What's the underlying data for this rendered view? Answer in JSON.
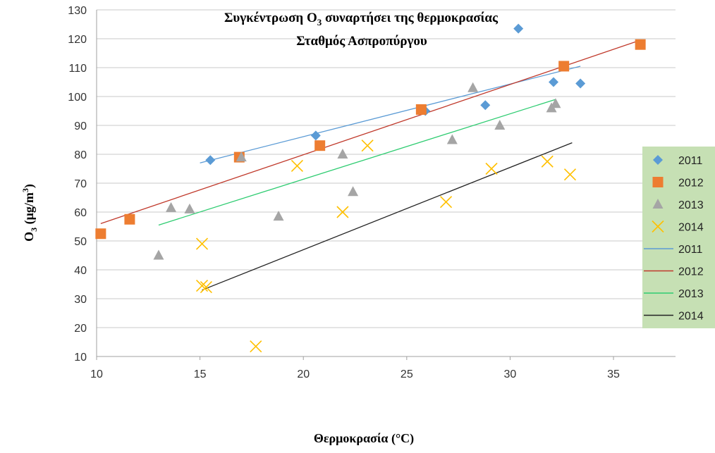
{
  "chart_data": {
    "type": "scatter",
    "title_line1": "Συγκέντρωση O",
    "title_sub": "3",
    "title_line1_rest": " συναρτήσει της θερμοκρασίας",
    "title_line2": "Σταθμός Ασπροπύργου",
    "ylabel_main": "O",
    "ylabel_sub": "3",
    "ylabel_rest": " (μg/m",
    "ylabel_sup": "3",
    "ylabel_end": ")",
    "xlabel": "Θερμοκρασία (°C)",
    "xlim": [
      10,
      38
    ],
    "ylim": [
      10,
      130
    ],
    "xticks": [
      10,
      15,
      20,
      25,
      30,
      35
    ],
    "yticks": [
      10,
      20,
      30,
      40,
      50,
      60,
      70,
      80,
      90,
      100,
      110,
      120,
      130
    ],
    "grid": "horizontal",
    "legend_position": "right",
    "series": [
      {
        "name": "2011",
        "marker": "diamond",
        "color": "#5b9bd5",
        "points": [
          [
            15.5,
            78
          ],
          [
            20.6,
            86.5
          ],
          [
            25.9,
            95
          ],
          [
            28.8,
            97
          ],
          [
            30.4,
            123.5
          ],
          [
            32.1,
            105
          ],
          [
            33.4,
            104.5
          ]
        ]
      },
      {
        "name": "2012",
        "marker": "square",
        "color": "#ed7d31",
        "points": [
          [
            10.2,
            52.5
          ],
          [
            11.6,
            57.5
          ],
          [
            16.9,
            79
          ],
          [
            20.8,
            83
          ],
          [
            25.7,
            95.5
          ],
          [
            32.6,
            110.5
          ],
          [
            36.3,
            118
          ]
        ]
      },
      {
        "name": "2013",
        "marker": "triangle",
        "color": "#a5a5a5",
        "points": [
          [
            13.0,
            45
          ],
          [
            13.6,
            61.5
          ],
          [
            14.5,
            61
          ],
          [
            17.0,
            79
          ],
          [
            18.8,
            58.5
          ],
          [
            21.9,
            80
          ],
          [
            22.4,
            67
          ],
          [
            27.2,
            85
          ],
          [
            28.2,
            103
          ],
          [
            29.5,
            90
          ],
          [
            32.0,
            96
          ],
          [
            32.2,
            97.5
          ]
        ]
      },
      {
        "name": "2014",
        "marker": "x",
        "color": "#ffc000",
        "points": [
          [
            15.1,
            49
          ],
          [
            15.1,
            34.5
          ],
          [
            15.3,
            34
          ],
          [
            17.7,
            13.5
          ],
          [
            19.7,
            76
          ],
          [
            21.9,
            60
          ],
          [
            23.1,
            83
          ],
          [
            26.9,
            63.5
          ],
          [
            29.1,
            75
          ],
          [
            31.8,
            77.5
          ],
          [
            32.9,
            73
          ]
        ]
      }
    ],
    "trendlines": [
      {
        "name": "2011",
        "color": "#5b9bd5",
        "from": [
          15.0,
          77.0
        ],
        "to": [
          33.4,
          110.5
        ]
      },
      {
        "name": "2012",
        "color": "#c0392b",
        "from": [
          10.2,
          56.0
        ],
        "to": [
          36.3,
          119.5
        ]
      },
      {
        "name": "2013",
        "color": "#2ecc71",
        "from": [
          13.0,
          55.5
        ],
        "to": [
          32.2,
          99.0
        ]
      },
      {
        "name": "2014",
        "color": "#222222",
        "from": [
          15.1,
          33.0
        ],
        "to": [
          33.0,
          84.0
        ]
      }
    ],
    "legend_bg": "#c6e0b4"
  }
}
